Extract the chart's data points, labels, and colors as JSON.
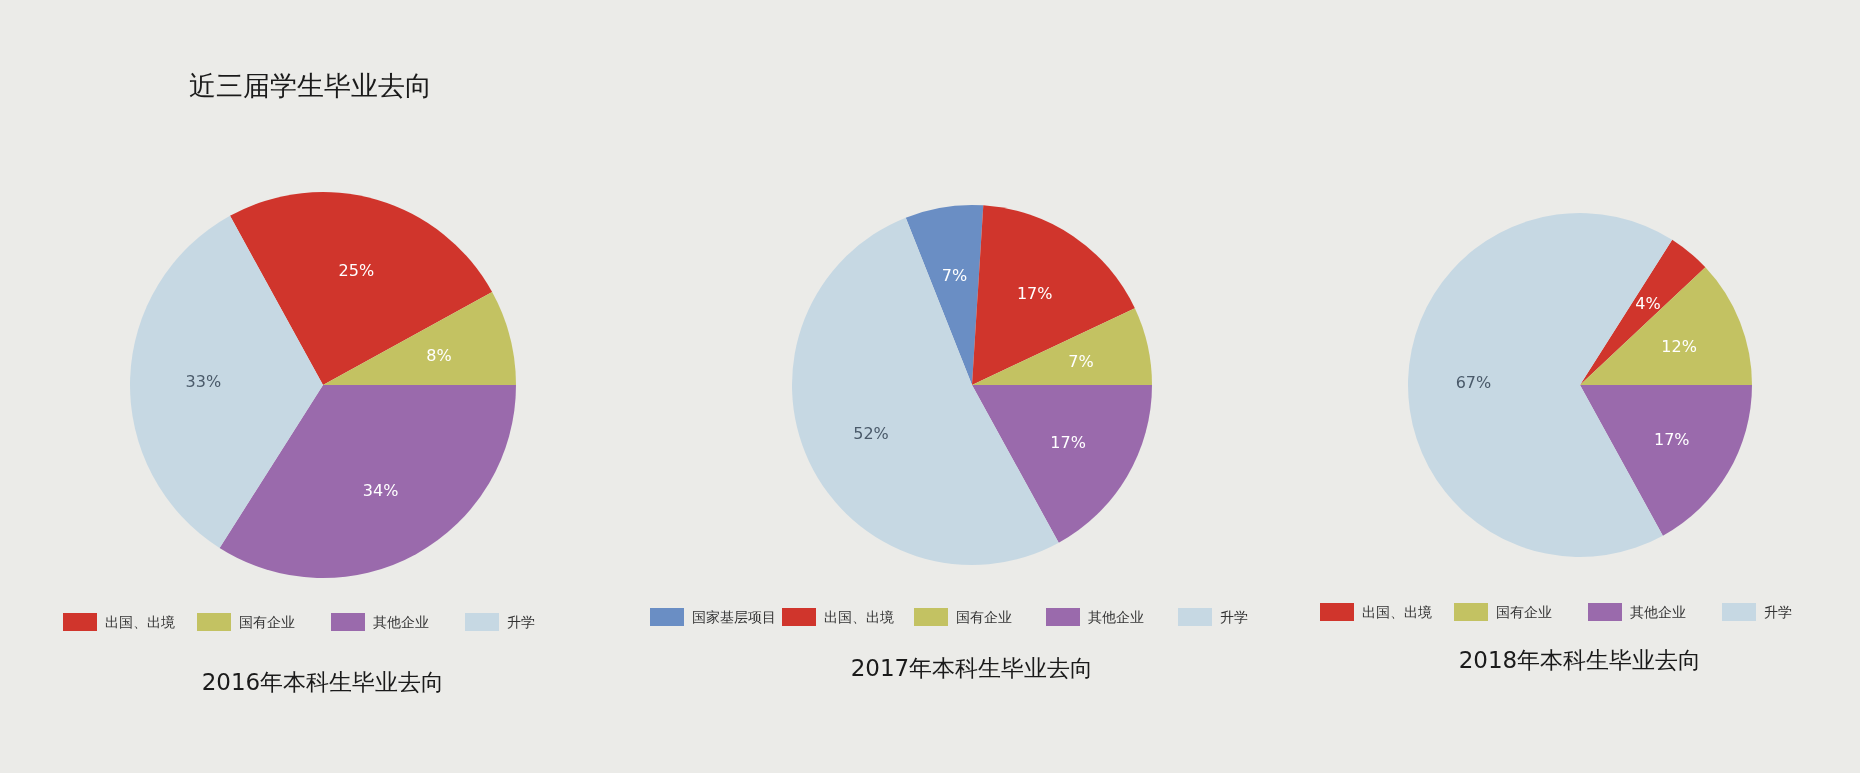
{
  "chart_data": [
    {
      "type": "pie",
      "title": "2016年本科生毕业去向",
      "annotations": [
        "近三届学生毕业去向"
      ],
      "categories": [
        "出国、出境",
        "国有企业",
        "其他企业",
        "升学"
      ],
      "values": [
        25,
        8,
        34,
        33
      ],
      "value_labels": [
        "25%",
        "8%",
        "34%",
        "33%"
      ],
      "colors": [
        "#d0352c",
        "#c3c262",
        "#9a6aac",
        "#c6d8e3"
      ],
      "legend": "bottom"
    },
    {
      "type": "pie",
      "title": "2017年本科生毕业去向",
      "categories": [
        "国家基层项目",
        "出国、出境",
        "国有企业",
        "其他企业",
        "升学"
      ],
      "values": [
        7,
        17,
        7,
        17,
        52
      ],
      "value_labels": [
        "7%",
        "17%",
        "7%",
        "17%",
        "52%"
      ],
      "colors": [
        "#6a8ec4",
        "#d0352c",
        "#c3c262",
        "#9a6aac",
        "#c6d8e3"
      ],
      "legend": "bottom"
    },
    {
      "type": "pie",
      "title": "2018年本科生毕业去向",
      "categories": [
        "出国、出境",
        "国有企业",
        "其他企业",
        "升学"
      ],
      "values": [
        4,
        12,
        17,
        67
      ],
      "value_labels": [
        "4%",
        "12%",
        "17%",
        "67%"
      ],
      "colors": [
        "#d0352c",
        "#c3c262",
        "#9a6aac",
        "#c6d8e3"
      ],
      "legend": "bottom"
    }
  ]
}
